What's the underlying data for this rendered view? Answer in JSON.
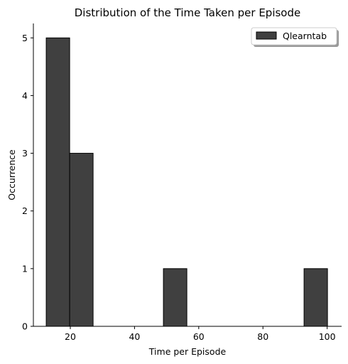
{
  "chart_data": {
    "type": "bar",
    "title": "Distribution of the Time Taken per Episode",
    "xlabel": "Time per Episode",
    "ylabel": "Occurrence",
    "xlim": [
      8.5,
      104.5
    ],
    "ylim": [
      0,
      5.25
    ],
    "xticks": [
      20,
      40,
      60,
      80,
      100
    ],
    "yticks": [
      0,
      1,
      2,
      3,
      4,
      5
    ],
    "grid": false,
    "legend_position": "top-right",
    "series": [
      {
        "name": "Qlearntab",
        "color": "#404040",
        "edge_color": "#000000",
        "bins": [
          {
            "x0": 12.5,
            "x1": 19.8,
            "count": 5
          },
          {
            "x0": 19.8,
            "x1": 27.1,
            "count": 3
          },
          {
            "x0": 27.1,
            "x1": 34.4,
            "count": 0
          },
          {
            "x0": 34.4,
            "x1": 41.7,
            "count": 0
          },
          {
            "x0": 41.7,
            "x1": 49.0,
            "count": 0
          },
          {
            "x0": 49.0,
            "x1": 56.3,
            "count": 1
          },
          {
            "x0": 56.3,
            "x1": 63.6,
            "count": 0
          },
          {
            "x0": 63.6,
            "x1": 70.9,
            "count": 0
          },
          {
            "x0": 70.9,
            "x1": 78.2,
            "count": 0
          },
          {
            "x0": 78.2,
            "x1": 85.5,
            "count": 0
          },
          {
            "x0": 85.5,
            "x1": 92.8,
            "count": 0
          },
          {
            "x0": 92.8,
            "x1": 100.1,
            "count": 1
          }
        ]
      }
    ]
  }
}
